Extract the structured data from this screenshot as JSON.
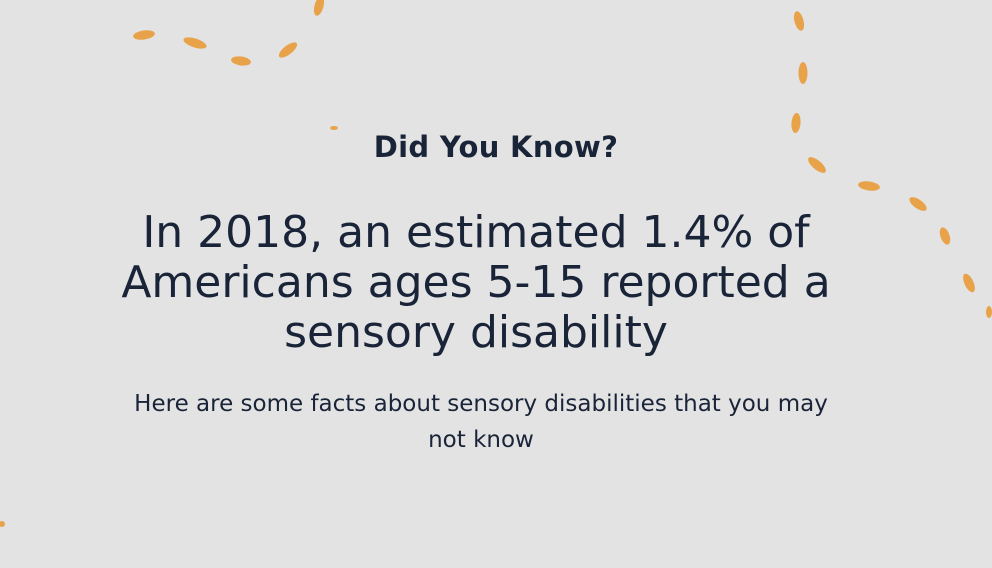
{
  "section": {
    "eyebrow": "Did You Know?",
    "headline": "In 2018, an estimated 1.4% of Americans ages 5-15 reported a sensory disability",
    "subtext": "Here are some facts about sensory disabilities that you may not know"
  },
  "colors": {
    "background": "#e3e3e3",
    "text": "#1a2438",
    "accent": "#e8a34a"
  },
  "decorations": {
    "icon": "dashed-curve-decoration"
  }
}
